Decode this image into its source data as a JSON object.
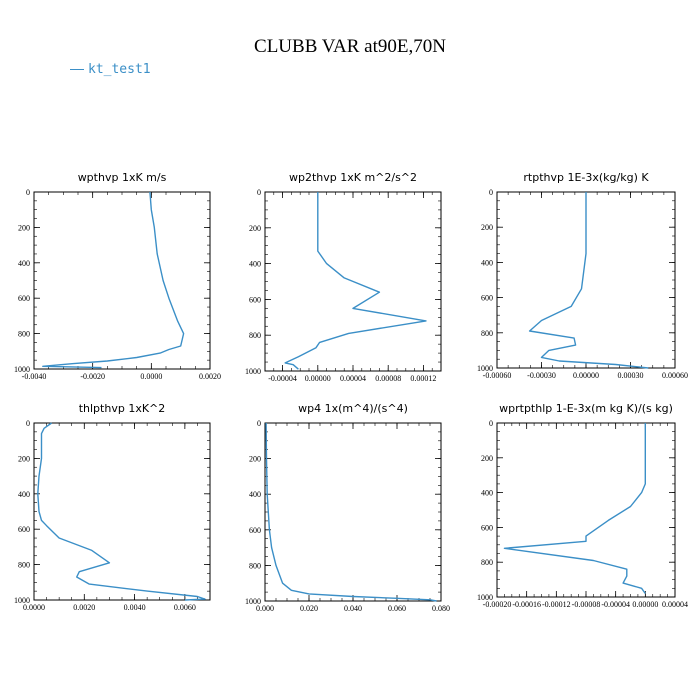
{
  "title": "CLUBB VAR at90E,70N",
  "legend": {
    "label": "kt_test1",
    "color": "#3b8fc7"
  },
  "series_color": "#3b8fc7",
  "chart_data": [
    {
      "type": "line",
      "title": "wpthvp  1xK m/s",
      "series_name": "kt_test1",
      "xlim": [
        -0.004,
        0.002
      ],
      "ylim": [
        1000,
        0
      ],
      "xticks": [
        -0.004,
        -0.002,
        0.0,
        0.002
      ],
      "xtick_labels": [
        "-0.0040",
        "-0.0020",
        "0.0000",
        "0.0020"
      ],
      "yticks": [
        0,
        200,
        400,
        600,
        800,
        1000
      ],
      "ytick_labels": [
        "0",
        "200",
        "400",
        "600",
        "800",
        "1000"
      ],
      "x": [
        -5e-05,
        -4e-05,
        0.0,
        0.0001,
        0.0002,
        0.0004,
        0.0006,
        0.0009,
        0.0011,
        0.001,
        0.0006,
        0.0003,
        -0.0005,
        -0.0015,
        -0.0027,
        -0.0037,
        -0.0017
      ],
      "y": [
        0,
        20,
        100,
        200,
        350,
        500,
        600,
        730,
        800,
        870,
        890,
        910,
        935,
        955,
        970,
        985,
        992
      ]
    },
    {
      "type": "line",
      "title": "wp2thvp  1xK m^2/s^2",
      "series_name": "kt_test1",
      "xlim": [
        -6e-05,
        0.00014
      ],
      "ylim": [
        1000,
        0
      ],
      "xticks": [
        -4e-05,
        0.0,
        4e-05,
        8e-05,
        0.00012
      ],
      "xtick_labels": [
        "-0.00004",
        "0.00000",
        "0.00004",
        "0.00008",
        "0.00012"
      ],
      "yticks": [
        0,
        200,
        400,
        600,
        800,
        1000
      ],
      "ytick_labels": [
        "0",
        "200",
        "400",
        "600",
        "800",
        "1000"
      ],
      "x": [
        0.0,
        0.0,
        0.0,
        0.0,
        1e-05,
        3e-05,
        7e-05,
        4e-05,
        0.000123,
        3.5e-05,
        2e-06,
        -2e-06,
        -2.2e-05,
        -3.7e-05,
        -2.8e-05,
        -2.2e-05
      ],
      "y": [
        0,
        200,
        300,
        330,
        400,
        480,
        560,
        650,
        720,
        790,
        840,
        870,
        920,
        955,
        965,
        990
      ]
    },
    {
      "type": "line",
      "title": "rtpthvp  1E-3x(kg/kg) K",
      "series_name": "kt_test1",
      "xlim": [
        -0.0006,
        0.0006
      ],
      "ylim": [
        1000,
        0
      ],
      "xticks": [
        -0.0006,
        -0.0003,
        0.0,
        0.0003,
        0.0006
      ],
      "xtick_labels": [
        "-0.00060",
        "-0.00030",
        "0.00000",
        "0.00030",
        "0.00060"
      ],
      "yticks": [
        0,
        200,
        400,
        600,
        800,
        1000
      ],
      "ytick_labels": [
        "0",
        "200",
        "400",
        "600",
        "800",
        "1000"
      ],
      "x": [
        0.0,
        0.0,
        0.0,
        -3e-05,
        -0.0001,
        -0.0003,
        -0.00038,
        -8e-05,
        -7e-05,
        -0.00025,
        -0.0003,
        -0.00018,
        0.0002,
        0.00042
      ],
      "y": [
        0,
        200,
        350,
        550,
        650,
        730,
        790,
        830,
        870,
        900,
        940,
        960,
        980,
        1000
      ]
    },
    {
      "type": "line",
      "title": "thlpthvp  1xK^2",
      "series_name": "kt_test1",
      "xlim": [
        0.0,
        0.007
      ],
      "ylim": [
        1000,
        0
      ],
      "xticks": [
        0.0,
        0.002,
        0.004,
        0.006
      ],
      "xtick_labels": [
        "0.0000",
        "0.0020",
        "0.0040",
        "0.0060"
      ],
      "yticks": [
        0,
        200,
        400,
        600,
        800,
        1000
      ],
      "ytick_labels": [
        "0",
        "200",
        "400",
        "600",
        "800",
        "1000"
      ],
      "x": [
        0.0007,
        0.0004,
        0.0003,
        0.0003,
        0.0003,
        0.0002,
        0.00015,
        0.0002,
        0.0003,
        0.0005,
        0.001,
        0.0023,
        0.003,
        0.0018,
        0.0017,
        0.0022,
        0.0045,
        0.0065,
        0.0068,
        0.006
      ],
      "y": [
        0,
        30,
        60,
        100,
        200,
        300,
        400,
        500,
        550,
        580,
        650,
        720,
        790,
        840,
        870,
        910,
        950,
        980,
        995,
        1000
      ]
    },
    {
      "type": "line",
      "title": "wp4  1x(m^4)/(s^4)",
      "series_name": "kt_test1",
      "xlim": [
        0.0,
        0.08
      ],
      "ylim": [
        1000,
        0
      ],
      "xticks": [
        0.0,
        0.02,
        0.04,
        0.06,
        0.08
      ],
      "xtick_labels": [
        "0.000",
        "0.020",
        "0.040",
        "0.060",
        "0.080"
      ],
      "yticks": [
        0,
        200,
        400,
        600,
        800,
        1000
      ],
      "ytick_labels": [
        "0",
        "200",
        "400",
        "600",
        "800",
        "1000"
      ],
      "x": [
        0.0005,
        0.0007,
        0.001,
        0.0015,
        0.002,
        0.003,
        0.005,
        0.008,
        0.012,
        0.02,
        0.04,
        0.06,
        0.075,
        0.078
      ],
      "y": [
        0,
        200,
        400,
        500,
        600,
        700,
        800,
        900,
        940,
        960,
        975,
        985,
        993,
        1000
      ]
    },
    {
      "type": "line",
      "title": "wprtpthlp  1-E-3x(m kg K)/(s kg)",
      "series_name": "kt_test1",
      "xlim": [
        -0.0002,
        4e-05
      ],
      "ylim": [
        1000,
        0
      ],
      "xticks": [
        -0.0002,
        -0.00016,
        -0.00012,
        -8e-05,
        -4e-05,
        0.0,
        4e-05
      ],
      "xtick_labels": [
        "-0.00020",
        "-0.00016",
        "-0.00012",
        "-0.00008",
        "-0.00004",
        "0.00000",
        "0.00004"
      ],
      "yticks": [
        0,
        200,
        400,
        600,
        800,
        1000
      ],
      "ytick_labels": [
        "0",
        "200",
        "400",
        "600",
        "800",
        "1000"
      ],
      "x": [
        0.0,
        0.0,
        0.0,
        -5e-06,
        -2e-05,
        -5e-05,
        -8e-05,
        -8e-05,
        -0.00019,
        -7e-05,
        -2.5e-05,
        -2.5e-05,
        -3e-05,
        -5e-06,
        0.0
      ],
      "y": [
        0,
        200,
        350,
        400,
        480,
        560,
        650,
        680,
        720,
        790,
        840,
        880,
        920,
        950,
        980
      ]
    }
  ]
}
